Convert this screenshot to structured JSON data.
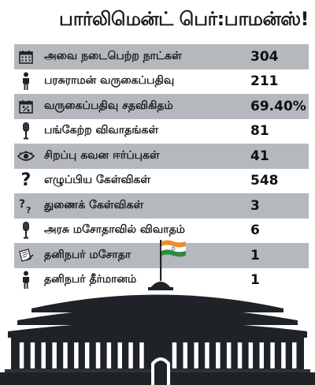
{
  "title": "பார்லிமென்ட் பெர்:பாமன்ஸ்!",
  "rows": [
    {
      "icon": "calendar-icon",
      "label": "அவை நடைபெற்ற நாட்கள்",
      "value": "304"
    },
    {
      "icon": "person-icon",
      "label": "பரசுராமன் வருகைப்பதிவு",
      "value": "211"
    },
    {
      "icon": "percent-calendar-icon",
      "label": "வருகைப்பதிவு சதவிகிதம்",
      "value": "69.40%"
    },
    {
      "icon": "microphone-icon",
      "label": "பங்கேற்ற விவாதங்கள்",
      "value": "81"
    },
    {
      "icon": "eye-icon",
      "label": "சிறப்பு கவன ஈர்ப்புகள்",
      "value": "41"
    },
    {
      "icon": "question-icon",
      "label": "எழுப்பிய கேள்விகள்",
      "value": "548"
    },
    {
      "icon": "double-question-icon",
      "label": "துணைக் கேள்விகள்",
      "value": "3"
    },
    {
      "icon": "microphone-icon",
      "label": "அரசு மசோதாவில் விவாதம்",
      "value": "6"
    },
    {
      "icon": "document-pen-icon",
      "label": "தனிநபர் மசோதா",
      "value": "1"
    },
    {
      "icon": "person-icon",
      "label": "தனிநபர் தீர்மானம்",
      "value": "1"
    }
  ],
  "colors": {
    "row_shade": "#b5b9bd",
    "building": "#1f2328",
    "flag_saffron": "#f28c28",
    "flag_white": "#ffffff",
    "flag_green": "#2e8b3d",
    "flag_chakra": "#1c3f94"
  }
}
